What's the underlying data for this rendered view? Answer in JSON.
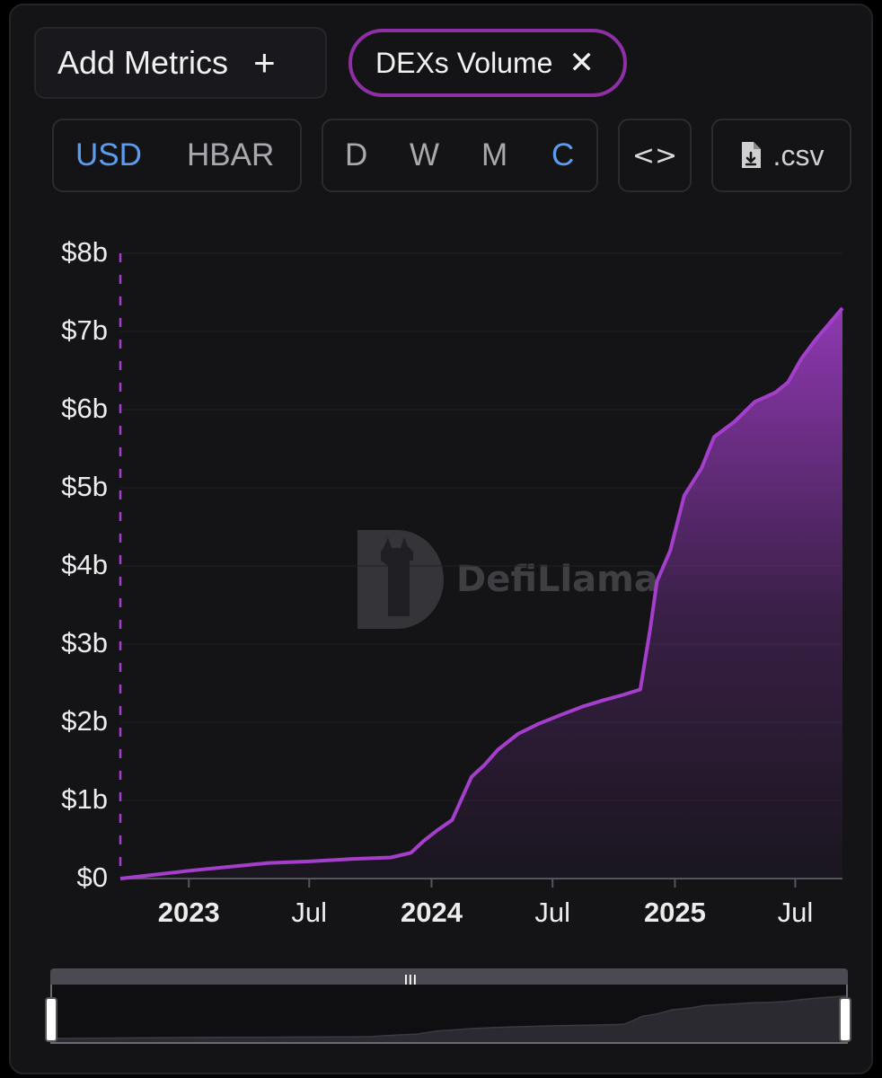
{
  "toolbar": {
    "add_metrics_label": "Add Metrics",
    "add_icon": "+",
    "active_metric": "DEXs Volume",
    "remove_icon": "✕",
    "currency_options": [
      "USD",
      "HBAR"
    ],
    "currency_selected": "USD",
    "period_options": [
      "D",
      "W",
      "M",
      "C"
    ],
    "period_selected": "C",
    "embed_icon": "code-icon",
    "embed_glyph": "<>",
    "csv_label": ".csv",
    "csv_icon": "file-download-icon"
  },
  "watermark": {
    "text": "DefiLlama"
  },
  "colors": {
    "series": "#a43fcc",
    "chip_border": "#8e2fa5",
    "active_option": "#5b9cf0",
    "background": "#141417"
  },
  "chart_data": {
    "type": "area",
    "ylabel": "",
    "xlabel": "",
    "y_ticks": [
      "$0",
      "$1b",
      "$2b",
      "$3b",
      "$4b",
      "$5b",
      "$6b",
      "$7b",
      "$8b"
    ],
    "ylim": [
      0,
      8
    ],
    "y_unit": "billion USD",
    "x_ticks": [
      {
        "label": "2023",
        "date": "2023-01-01",
        "major": true
      },
      {
        "label": "Jul",
        "date": "2023-07-01",
        "major": false
      },
      {
        "label": "2024",
        "date": "2024-01-01",
        "major": true
      },
      {
        "label": "Jul",
        "date": "2024-07-01",
        "major": false
      },
      {
        "label": "2025",
        "date": "2025-01-01",
        "major": true
      },
      {
        "label": "Jul",
        "date": "2025-07-01",
        "major": false
      }
    ],
    "xlim": [
      "2022-09-20",
      "2025-09-10"
    ],
    "series": [
      {
        "name": "DEXs Volume",
        "points": [
          [
            "2022-09-20",
            0.0
          ],
          [
            "2022-11-01",
            0.04
          ],
          [
            "2023-01-01",
            0.1
          ],
          [
            "2023-03-01",
            0.15
          ],
          [
            "2023-05-01",
            0.2
          ],
          [
            "2023-07-01",
            0.22
          ],
          [
            "2023-09-01",
            0.25
          ],
          [
            "2023-11-01",
            0.27
          ],
          [
            "2023-12-01",
            0.33
          ],
          [
            "2023-12-20",
            0.48
          ],
          [
            "2024-01-10",
            0.62
          ],
          [
            "2024-02-01",
            0.75
          ],
          [
            "2024-03-01",
            1.3
          ],
          [
            "2024-03-20",
            1.45
          ],
          [
            "2024-04-10",
            1.65
          ],
          [
            "2024-05-10",
            1.85
          ],
          [
            "2024-06-10",
            1.98
          ],
          [
            "2024-07-15",
            2.1
          ],
          [
            "2024-08-15",
            2.2
          ],
          [
            "2024-09-15",
            2.28
          ],
          [
            "2024-10-15",
            2.35
          ],
          [
            "2024-11-10",
            2.42
          ],
          [
            "2024-11-25",
            3.2
          ],
          [
            "2024-12-05",
            3.8
          ],
          [
            "2024-12-25",
            4.2
          ],
          [
            "2025-01-15",
            4.9
          ],
          [
            "2025-02-10",
            5.25
          ],
          [
            "2025-03-01",
            5.65
          ],
          [
            "2025-04-01",
            5.85
          ],
          [
            "2025-05-01",
            6.1
          ],
          [
            "2025-06-01",
            6.22
          ],
          [
            "2025-06-20",
            6.35
          ],
          [
            "2025-07-10",
            6.65
          ],
          [
            "2025-08-01",
            6.9
          ],
          [
            "2025-09-10",
            7.3
          ]
        ]
      }
    ]
  }
}
